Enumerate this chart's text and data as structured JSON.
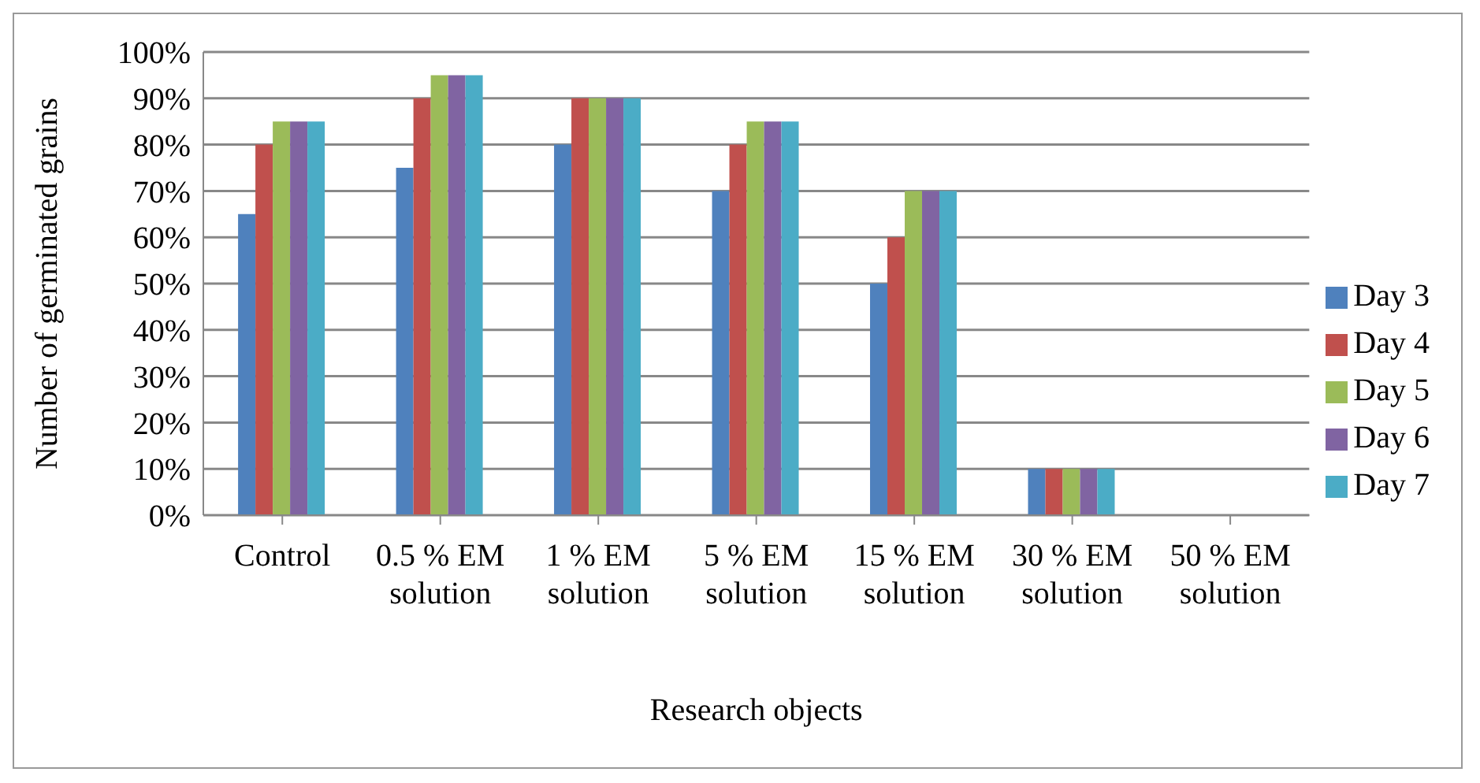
{
  "chart_data": {
    "type": "bar",
    "xlabel": "Research objects",
    "ylabel": "Number of germinated grains",
    "categories": [
      "Control",
      "0.5 % EM solution",
      "1 % EM solution",
      "5 % EM solution",
      "15 % EM solution",
      "30 % EM solution",
      "50 % EM solution"
    ],
    "series": [
      {
        "name": "Day 3",
        "color": "#4f81bd",
        "values": [
          65,
          75,
          80,
          70,
          50,
          10,
          0
        ]
      },
      {
        "name": "Day 4",
        "color": "#c0504d",
        "values": [
          80,
          90,
          90,
          80,
          60,
          10,
          0
        ]
      },
      {
        "name": "Day 5",
        "color": "#9bbb59",
        "values": [
          85,
          95,
          90,
          85,
          70,
          10,
          0
        ]
      },
      {
        "name": "Day 6",
        "color": "#8064a2",
        "values": [
          85,
          95,
          90,
          85,
          70,
          10,
          0
        ]
      },
      {
        "name": "Day 7",
        "color": "#4bacc6",
        "values": [
          85,
          95,
          90,
          85,
          70,
          10,
          0
        ]
      }
    ],
    "ylim": [
      0,
      100
    ],
    "yticks": [
      {
        "value": 0,
        "label": "0%"
      },
      {
        "value": 10,
        "label": "10%"
      },
      {
        "value": 20,
        "label": "20%"
      },
      {
        "value": 30,
        "label": "30%"
      },
      {
        "value": 40,
        "label": "40%"
      },
      {
        "value": 50,
        "label": "50%"
      },
      {
        "value": 60,
        "label": "60%"
      },
      {
        "value": 70,
        "label": "70%"
      },
      {
        "value": 80,
        "label": "80%"
      },
      {
        "value": 90,
        "label": "90%"
      },
      {
        "value": 100,
        "label": "100%"
      }
    ],
    "grid": "y",
    "legend": "right"
  }
}
